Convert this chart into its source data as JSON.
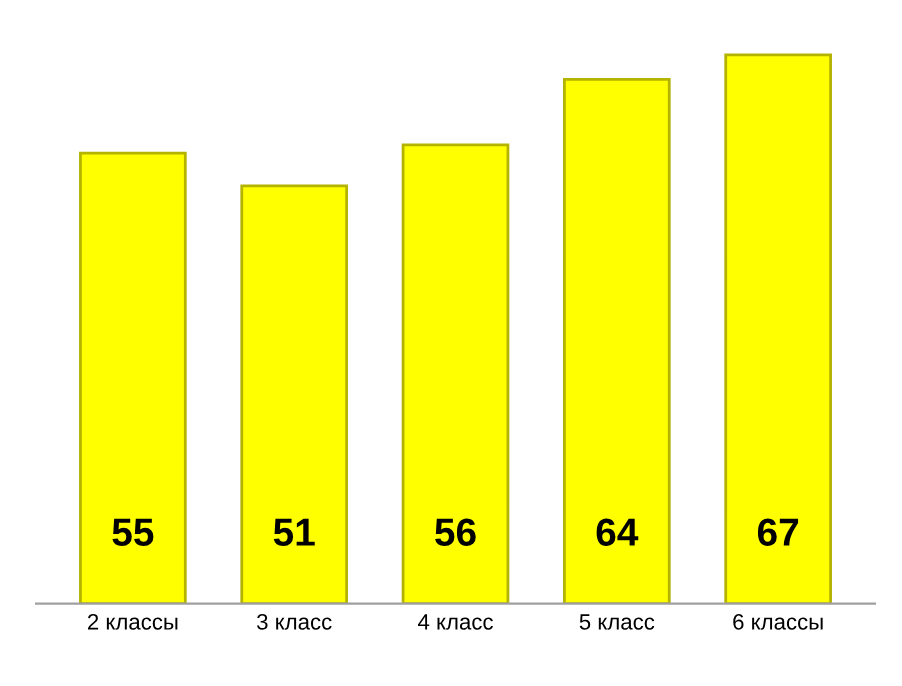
{
  "chart_data": {
    "type": "bar",
    "categories": [
      "2 классы",
      "3 класс",
      "4 класс",
      "5 класс",
      "6 классы"
    ],
    "values": [
      55,
      51,
      56,
      64,
      67
    ],
    "color": "#ffff00",
    "data_labels": true,
    "tick_labels": "x",
    "grid": false
  }
}
